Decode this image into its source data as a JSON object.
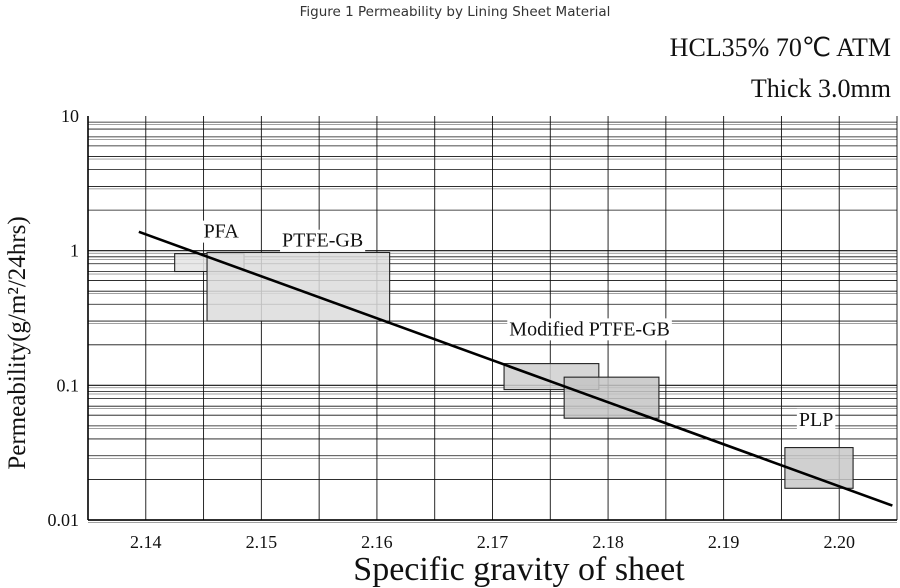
{
  "figure_title": "Figure 1 Permeability by Lining Sheet Material",
  "conditions": {
    "line1": "HCL35%  70℃  ATM",
    "line2": "Thick 3.0mm"
  },
  "chart_data": {
    "type": "scatter",
    "xlabel": "Specific  gravity  of  sheet",
    "ylabel": "Permeability(g/m²/24hrs)",
    "xlim": [
      2.135,
      2.205
    ],
    "ylim": [
      0.01,
      10
    ],
    "y_scale": "log",
    "grid": true,
    "x_ticks": [
      2.14,
      2.15,
      2.16,
      2.17,
      2.18,
      2.19,
      2.2
    ],
    "x_tick_labels": [
      "2.14",
      "2.15",
      "2.16",
      "2.17",
      "2.18",
      "2.19",
      "2.20"
    ],
    "y_ticks": [
      0.01,
      0.1,
      1,
      10
    ],
    "y_tick_labels": [
      "0.01",
      "0.1",
      "1",
      "10"
    ],
    "regions": [
      {
        "label": "PFA",
        "x_range": [
          2.1425,
          2.1485
        ],
        "y_range": [
          0.7,
          0.95
        ],
        "color": "#e4e4e4"
      },
      {
        "label": "PTFE-GB",
        "x_range": [
          2.1453,
          2.1611
        ],
        "y_range": [
          0.3,
          0.97
        ],
        "color": "#dcdcdc"
      },
      {
        "label": "Modified PTFE-GB",
        "x_range": [
          2.171,
          2.1792
        ],
        "y_range": [
          0.093,
          0.145
        ],
        "color": "#cfcfcf"
      },
      {
        "label": "",
        "x_range": [
          2.1762,
          2.1844
        ],
        "y_range": [
          0.057,
          0.115
        ],
        "color": "#c4c4c4"
      },
      {
        "label": "PLP",
        "x_range": [
          2.1953,
          2.2012
        ],
        "y_range": [
          0.0172,
          0.0345
        ],
        "color": "#c8c8c8"
      }
    ],
    "trend_line": {
      "x": [
        2.1394,
        2.2046
      ],
      "y": [
        1.38,
        0.0128
      ]
    }
  }
}
